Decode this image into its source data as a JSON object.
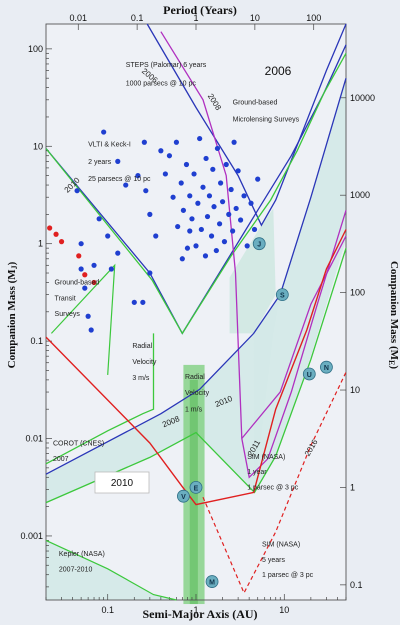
{
  "chart_data": {
    "type": "scatter",
    "title": "",
    "panel_year": "2006",
    "box_year": "2010",
    "top_xlabel": "Period (Years)",
    "xlabel": "Semi-Major Axis (AU)",
    "ylabel_left": "Companion Mass (M",
    "ylabel_left_sub": "J",
    "ylabel_right": "Companion Mass (M",
    "ylabel_right_sub": "E",
    "x_log_range": [
      0.02,
      50
    ],
    "y_log_range": [
      0.00022,
      180
    ],
    "x_ticks": [
      {
        "v": 0.1,
        "label": "0.1"
      },
      {
        "v": 1,
        "label": "1"
      },
      {
        "v": 10,
        "label": "10"
      }
    ],
    "top_ticks": [
      {
        "a": 0.0464,
        "label": "0.01"
      },
      {
        "a": 0.2154,
        "label": "0.1"
      },
      {
        "a": 1,
        "label": "1"
      },
      {
        "a": 4.642,
        "label": "10"
      },
      {
        "a": 21.54,
        "label": "100"
      }
    ],
    "y_ticks": [
      {
        "v": 100,
        "label": "100"
      },
      {
        "v": 10,
        "label": "10"
      },
      {
        "v": 1,
        "label": "1"
      },
      {
        "v": 0.1,
        "label": "0.1"
      },
      {
        "v": 0.01,
        "label": "0.01"
      },
      {
        "v": 0.001,
        "label": "0.001"
      }
    ],
    "right_ticks": [
      {
        "m": 10000,
        "label": "10000"
      },
      {
        "m": 1000,
        "label": "1000"
      },
      {
        "m": 100,
        "label": "100"
      },
      {
        "m": 10,
        "label": "10"
      },
      {
        "m": 1,
        "label": "1"
      },
      {
        "m": 0.1,
        "label": "0.1"
      }
    ],
    "colors": {
      "exoplanet": "#1f3fd0",
      "transit": "#e02020",
      "steps": "#2a36b8",
      "microlensing": "#b030c0",
      "green": "#3cc83c",
      "sim": "#e02020",
      "solar": "#6aaec0"
    },
    "exoplanets": [
      [
        0.09,
        14
      ],
      [
        0.13,
        7
      ],
      [
        0.16,
        4
      ],
      [
        0.22,
        5
      ],
      [
        0.26,
        11
      ],
      [
        0.27,
        3.5
      ],
      [
        0.3,
        2
      ],
      [
        0.35,
        1.2
      ],
      [
        0.4,
        9
      ],
      [
        0.45,
        5.2
      ],
      [
        0.5,
        8
      ],
      [
        0.55,
        3
      ],
      [
        0.6,
        11
      ],
      [
        0.62,
        1.5
      ],
      [
        0.68,
        4.2
      ],
      [
        0.72,
        2.2
      ],
      [
        0.78,
        6.5
      ],
      [
        0.8,
        0.9
      ],
      [
        0.85,
        3.1
      ],
      [
        0.9,
        1.8
      ],
      [
        0.95,
        5.2
      ],
      [
        1.0,
        0.95
      ],
      [
        1.05,
        2.6
      ],
      [
        1.1,
        12
      ],
      [
        1.15,
        1.4
      ],
      [
        1.2,
        3.8
      ],
      [
        1.28,
        0.75
      ],
      [
        1.3,
        7.5
      ],
      [
        1.35,
        1.9
      ],
      [
        1.42,
        3.1
      ],
      [
        1.5,
        1.2
      ],
      [
        1.55,
        5.8
      ],
      [
        1.6,
        2.4
      ],
      [
        1.7,
        0.85
      ],
      [
        1.75,
        9.5
      ],
      [
        1.85,
        1.6
      ],
      [
        1.9,
        4.2
      ],
      [
        2.0,
        2.7
      ],
      [
        2.1,
        1.05
      ],
      [
        2.2,
        6.5
      ],
      [
        2.35,
        2.0
      ],
      [
        2.5,
        3.6
      ],
      [
        2.6,
        1.35
      ],
      [
        2.7,
        11
      ],
      [
        2.85,
        2.3
      ],
      [
        3.0,
        5.6
      ],
      [
        3.2,
        1.75
      ],
      [
        3.5,
        3.1
      ],
      [
        3.8,
        0.95
      ],
      [
        4.2,
        2.6
      ],
      [
        4.6,
        1.4
      ],
      [
        5.0,
        4.6
      ],
      [
        0.045,
        3.5
      ],
      [
        0.05,
        1.0
      ],
      [
        0.05,
        0.55
      ],
      [
        0.055,
        0.35
      ],
      [
        0.06,
        0.18
      ],
      [
        0.065,
        0.13
      ],
      [
        0.07,
        0.6
      ],
      [
        0.08,
        1.8
      ],
      [
        0.1,
        1.2
      ],
      [
        0.11,
        0.55
      ],
      [
        0.13,
        0.8
      ],
      [
        0.2,
        0.25
      ],
      [
        0.25,
        0.25
      ],
      [
        0.3,
        0.5
      ],
      [
        0.7,
        0.7
      ],
      [
        0.85,
        1.35
      ]
    ],
    "transiting": [
      [
        0.022,
        1.45
      ],
      [
        0.026,
        1.25
      ],
      [
        0.03,
        1.05
      ],
      [
        0.047,
        0.75
      ],
      [
        0.055,
        0.48
      ],
      [
        0.07,
        0.4
      ]
    ],
    "solar_system": [
      {
        "a": 5.2,
        "m": 1.0,
        "label": "J"
      },
      {
        "a": 9.5,
        "m": 0.3,
        "label": "S"
      },
      {
        "a": 19.2,
        "m": 0.046,
        "label": "U"
      },
      {
        "a": 30.0,
        "m": 0.054,
        "label": "N"
      },
      {
        "a": 0.72,
        "m": 0.00256,
        "label": "V"
      },
      {
        "a": 1.0,
        "m": 0.00315,
        "label": "E"
      },
      {
        "a": 1.52,
        "m": 0.00034,
        "label": "M"
      }
    ],
    "annotations": [
      {
        "text": "STEPS (Palomar) 6 years",
        "a": 0.16,
        "m": 65
      },
      {
        "text": "1000 parsecs @ 10 pc",
        "a": 0.16,
        "m": 42
      },
      {
        "text": "Ground-based",
        "a": 2.6,
        "m": 27
      },
      {
        "text": "Microlensing Surveys",
        "a": 2.6,
        "m": 18
      },
      {
        "text": "VLTI & Keck-I",
        "a": 0.06,
        "m": 10
      },
      {
        "text": "2 years",
        "a": 0.06,
        "m": 6.6
      },
      {
        "text": "25 parsecs @ 10 pc",
        "a": 0.06,
        "m": 4.4
      },
      {
        "text": "Ground-based",
        "a": 0.025,
        "m": 0.38
      },
      {
        "text": "Transit",
        "a": 0.025,
        "m": 0.26
      },
      {
        "text": "Surveys",
        "a": 0.025,
        "m": 0.18
      },
      {
        "text": "Radial",
        "a": 0.19,
        "m": 0.085
      },
      {
        "text": "Velocity",
        "a": 0.19,
        "m": 0.058
      },
      {
        "text": "3 m/s",
        "a": 0.19,
        "m": 0.04
      },
      {
        "text": "Radial",
        "a": 0.75,
        "m": 0.041
      },
      {
        "text": "Velocity",
        "a": 0.75,
        "m": 0.028
      },
      {
        "text": "1 m/s",
        "a": 0.75,
        "m": 0.019
      },
      {
        "text": "COROT (CNES)",
        "a": 0.024,
        "m": 0.0085
      },
      {
        "text": "2007",
        "a": 0.024,
        "m": 0.0059
      },
      {
        "text": "SIM (NASA)",
        "a": 3.8,
        "m": 0.0062
      },
      {
        "text": "1 year",
        "a": 3.8,
        "m": 0.0043
      },
      {
        "text": "1 parsec @ 3 pc",
        "a": 3.8,
        "m": 0.003
      },
      {
        "text": "SIM (NASA)",
        "a": 5.6,
        "m": 0.00078
      },
      {
        "text": "5 years",
        "a": 5.6,
        "m": 0.00054
      },
      {
        "text": "1 parsec @ 3 pc",
        "a": 5.6,
        "m": 0.00038
      },
      {
        "text": "Kepler (NASA)",
        "a": 0.028,
        "m": 0.00062
      },
      {
        "text": "2007-2010",
        "a": 0.028,
        "m": 0.00043
      }
    ],
    "line_years": [
      {
        "text": "2006",
        "a": 0.24,
        "m": 58,
        "rot": 40
      },
      {
        "text": "2008",
        "a": 1.35,
        "m": 33,
        "rot": 58
      },
      {
        "text": "2010",
        "a": 0.035,
        "m": 3.3,
        "rot": -44
      },
      {
        "text": "2008",
        "a": 0.43,
        "m": 0.013,
        "rot": -22
      },
      {
        "text": "2010",
        "a": 1.7,
        "m": 0.021,
        "rot": -22
      },
      {
        "text": "2011",
        "a": 4.3,
        "m": 0.0065,
        "rot": -60
      },
      {
        "text": "2016",
        "a": 19,
        "m": 0.0065,
        "rot": -60
      }
    ],
    "curves": [
      {
        "name": "steps",
        "color": "#2a36b8",
        "width": 1.3,
        "dash": "",
        "pts": [
          [
            0.28,
            180
          ],
          [
            1.0,
            25
          ],
          [
            3.0,
            5.0
          ],
          [
            5.5,
            1.55
          ],
          [
            8.0,
            2.8
          ],
          [
            15,
            12
          ],
          [
            30,
            60
          ],
          [
            50,
            180
          ]
        ]
      },
      {
        "name": "vlti",
        "color": "#2a36b8",
        "width": 1.3,
        "dash": "",
        "pts": [
          [
            0.02,
            9.5
          ],
          [
            0.3,
            0.5
          ],
          [
            0.7,
            0.12
          ],
          [
            1.3,
            0.3
          ],
          [
            5,
            2.2
          ],
          [
            12,
            8
          ],
          [
            28,
            35
          ],
          [
            50,
            110
          ]
        ]
      },
      {
        "name": "vlti-green",
        "color": "#3cc83c",
        "width": 1.3,
        "dash": "",
        "pts": [
          [
            0.02,
            9.5
          ],
          [
            0.32,
            0.42
          ],
          [
            0.7,
            0.12
          ],
          [
            2.5,
            0.75
          ],
          [
            7,
            2.8
          ],
          [
            14,
            9
          ],
          [
            28,
            35
          ],
          [
            50,
            90
          ]
        ]
      },
      {
        "name": "microlensing",
        "color": "#b030c0",
        "width": 1.3,
        "dash": "",
        "pts": [
          [
            0.4,
            150
          ],
          [
            1.2,
            30
          ],
          [
            2.2,
            5
          ],
          [
            2.8,
            0.5
          ],
          [
            3.3,
            0.01
          ],
          [
            4.0,
            0.004
          ],
          [
            6.5,
            0.0062
          ],
          [
            12,
            0.03
          ],
          [
            24,
            0.25
          ],
          [
            50,
            2.2
          ]
        ]
      },
      {
        "name": "microlensing-2",
        "color": "#b030c0",
        "width": 1.3,
        "dash": "",
        "pts": [
          [
            3.3,
            0.01
          ],
          [
            9,
            0.03
          ],
          [
            20,
            0.24
          ],
          [
            50,
            1.2
          ]
        ]
      },
      {
        "name": "rv3-green",
        "color": "#3cc83c",
        "width": 1.3,
        "dash": "",
        "pts": [
          [
            0.02,
            0.0055
          ],
          [
            0.1,
            0.012
          ],
          [
            0.25,
            0.018
          ],
          [
            0.33,
            0.02
          ],
          [
            0.33,
            0.12
          ]
        ]
      },
      {
        "name": "rv1-blue",
        "color": "#2a36b8",
        "width": 1.3,
        "dash": "",
        "pts": [
          [
            0.02,
            0.0043
          ],
          [
            0.4,
            0.018
          ],
          [
            1.1,
            0.032
          ],
          [
            4.5,
            0.12
          ],
          [
            9,
            0.3
          ],
          [
            20,
            3.0
          ],
          [
            50,
            50
          ]
        ]
      },
      {
        "name": "rv1-green",
        "color": "#3cc83c",
        "width": 1.3,
        "dash": "",
        "pts": [
          [
            0.02,
            0.0022
          ],
          [
            0.3,
            0.0064
          ],
          [
            1.0,
            0.0115
          ],
          [
            4.6,
            0.0028
          ],
          [
            8,
            0.0066
          ],
          [
            20,
            0.065
          ],
          [
            50,
            0.9
          ]
        ]
      },
      {
        "name": "sim1",
        "color": "#e02020",
        "width": 1.4,
        "dash": "",
        "pts": [
          [
            0.02,
            0.11
          ],
          [
            0.3,
            0.009
          ],
          [
            0.7,
            0.0032
          ],
          [
            1.0,
            0.0021
          ],
          [
            4.5,
            0.0028
          ],
          [
            8,
            0.02
          ],
          [
            18,
            0.13
          ],
          [
            30,
            0.55
          ],
          [
            50,
            1.4
          ]
        ]
      },
      {
        "name": "sim5",
        "color": "#e02020",
        "width": 1.2,
        "dash": "4,3",
        "pts": [
          [
            1.2,
            0.0025
          ],
          [
            3.5,
            0.00026
          ],
          [
            8,
            0.0011
          ],
          [
            20,
            0.0085
          ],
          [
            50,
            0.048
          ]
        ]
      },
      {
        "name": "kepler",
        "color": "#3cc83c",
        "width": 1.2,
        "dash": "",
        "pts": [
          [
            0.02,
            0.0009
          ],
          [
            0.1,
            0.00046
          ],
          [
            0.33,
            0.00025
          ],
          [
            0.6,
            0.00022
          ]
        ]
      },
      {
        "name": "transit",
        "color": "#3cc83c",
        "width": 1.2,
        "dash": "",
        "pts": [
          [
            0.023,
            0.12
          ],
          [
            0.12,
            0.6
          ],
          [
            0.1,
            0.045
          ]
        ]
      }
    ]
  }
}
